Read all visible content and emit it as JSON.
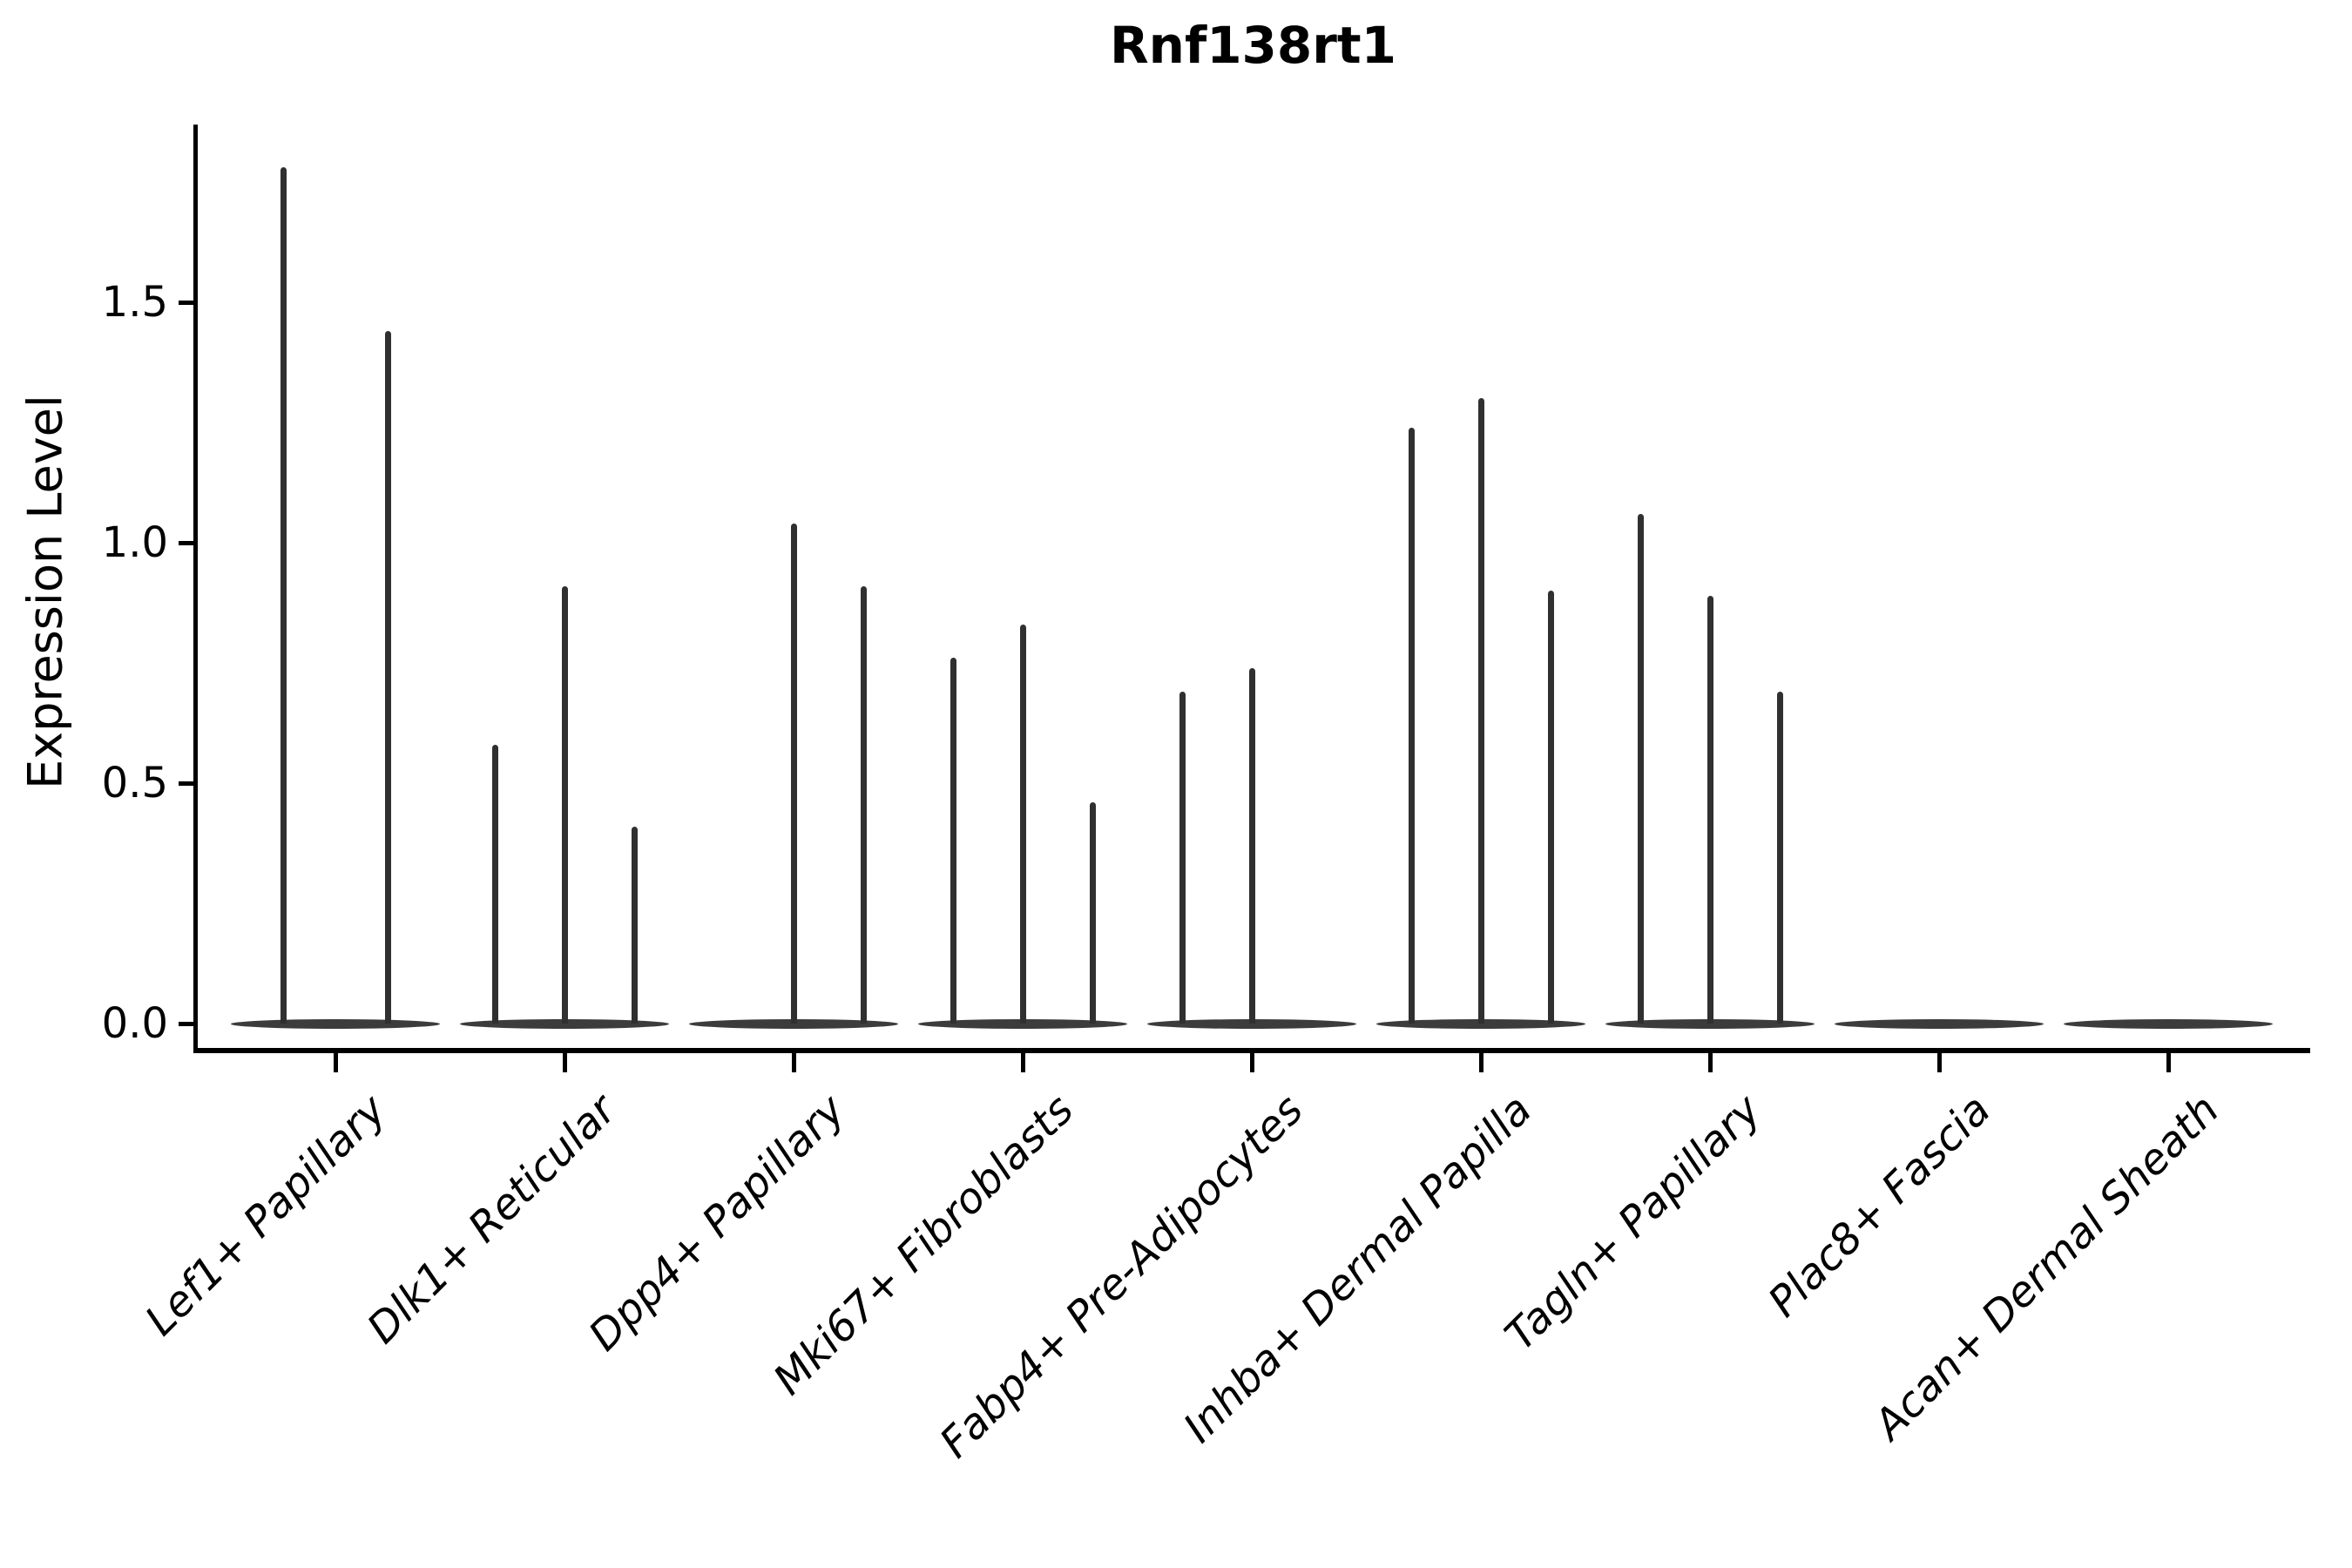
{
  "title": "Rnf138rt1",
  "y_axis": {
    "label": "Expression Level",
    "ticks": [
      {
        "label": "0.0",
        "value": 0.0
      },
      {
        "label": "0.5",
        "value": 0.5
      },
      {
        "label": "1.0",
        "value": 1.0
      },
      {
        "label": "1.5",
        "value": 1.5
      }
    ]
  },
  "x_axis": {
    "categories": [
      "Lef1+ Papillary",
      "Dlk1+ Reticular",
      "Dpp4+ Papillary",
      "Mki67+ Fibroblasts",
      "Fabp4+ Pre-Adipocytes",
      "Inhba+ Dermal Papilla",
      "Tagln+ Papillary",
      "Plac8+ Fascia",
      "Acan+ Dermal Sheath"
    ]
  },
  "chart_data": {
    "type": "violin",
    "title": "Rnf138rt1",
    "xlabel": "",
    "ylabel": "Expression Level",
    "ylim": [
      -0.05,
      1.87
    ],
    "yticks": [
      0.0,
      0.5,
      1.0,
      1.5
    ],
    "grid": false,
    "legend": "none",
    "description": "Needle-like violin plot of gene expression; each category holds 2-3 thin sub-violins sharing a flat zero-expression base; values are the peak expression level of each sub-violin (0 = flat, no needle).",
    "categories": [
      "Lef1+ Papillary",
      "Dlk1+ Reticular",
      "Dpp4+ Papillary",
      "Mki67+ Fibroblasts",
      "Fabp4+ Pre-Adipocytes",
      "Inhba+ Dermal Papilla",
      "Tagln+ Papillary",
      "Plac8+ Fascia",
      "Acan+ Dermal Sheath"
    ],
    "violins": [
      {
        "category": "Lef1+ Papillary",
        "max_expression": [
          1.78,
          1.44
        ]
      },
      {
        "category": "Dlk1+ Reticular",
        "max_expression": [
          0.58,
          0.91,
          0.41
        ]
      },
      {
        "category": "Dpp4+ Papillary",
        "max_expression": [
          0.0,
          1.04,
          0.91
        ]
      },
      {
        "category": "Mki67+ Fibroblasts",
        "max_expression": [
          0.76,
          0.83,
          0.46
        ]
      },
      {
        "category": "Fabp4+ Pre-Adipocytes",
        "max_expression": [
          0.69,
          0.74,
          0.0
        ]
      },
      {
        "category": "Inhba+ Dermal Papilla",
        "max_expression": [
          1.24,
          1.3,
          0.9
        ]
      },
      {
        "category": "Tagln+ Papillary",
        "max_expression": [
          1.06,
          0.89,
          0.69
        ]
      },
      {
        "category": "Plac8+ Fascia",
        "max_expression": [
          0.0,
          0.0,
          0.0
        ]
      },
      {
        "category": "Acan+ Dermal Sheath",
        "max_expression": [
          0.0,
          0.0,
          0.0
        ]
      }
    ],
    "colors": {
      "violin": "#333333",
      "axis": "#000000",
      "text": "#000000",
      "background": "#ffffff"
    }
  }
}
